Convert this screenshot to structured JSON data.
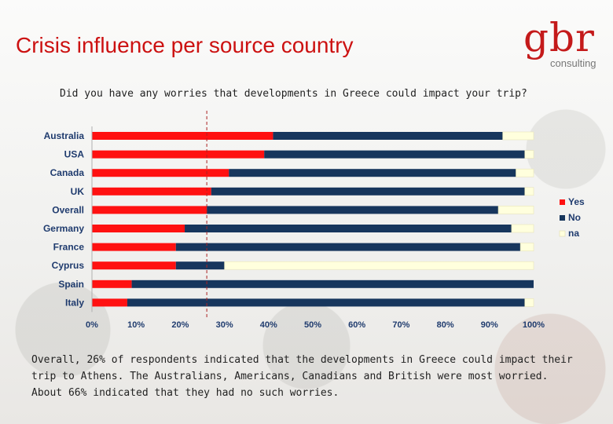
{
  "page": {
    "title": "Crisis influence per source country",
    "logo_main": "gbr",
    "logo_sub": "consulting",
    "question": "Did you have any worries that developments in Greece could impact your trip?",
    "summary": "Overall, 26% of respondents indicated that the developments in Greece could impact their trip to Athens. The Australians, Americans, Canadians and British were most worried. About 66% indicated that they had no such worries."
  },
  "chart_data": {
    "type": "bar",
    "orientation": "horizontal",
    "stacked": true,
    "categories": [
      "Australia",
      "USA",
      "Canada",
      "UK",
      "Overall",
      "Germany",
      "France",
      "Cyprus",
      "Spain",
      "Italy"
    ],
    "series": [
      {
        "name": "Yes",
        "color": "#ff1111",
        "values": [
          41,
          39,
          31,
          27,
          26,
          21,
          19,
          19,
          9,
          8
        ]
      },
      {
        "name": "No",
        "color": "#17365d",
        "values": [
          52,
          59,
          65,
          71,
          66,
          74,
          78,
          11,
          91,
          90
        ]
      },
      {
        "name": "na",
        "color": "#ffffdd",
        "values": [
          7,
          2,
          4,
          2,
          8,
          5,
          3,
          70,
          0,
          2
        ]
      }
    ],
    "xlim": [
      0,
      100
    ],
    "x_ticks": [
      "0%",
      "10%",
      "20%",
      "30%",
      "40%",
      "50%",
      "60%",
      "70%",
      "80%",
      "90%",
      "100%"
    ],
    "reference_line": {
      "value": 26,
      "style": "dashed",
      "color": "#aa2222"
    },
    "legend_position": "right",
    "grid": false
  }
}
